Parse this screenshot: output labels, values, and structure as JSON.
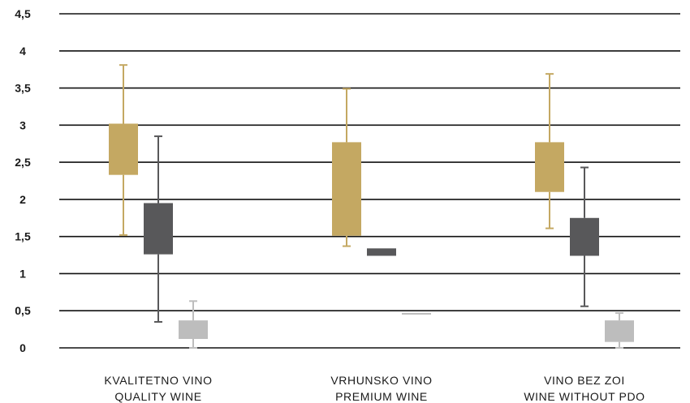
{
  "chart_data": {
    "type": "boxplot",
    "title": "",
    "xlabel": "",
    "ylabel": "",
    "ylim": [
      0,
      4.5
    ],
    "grid": true,
    "legend": "none",
    "y_ticks": [
      "0",
      "0,5",
      "1",
      "1,5",
      "2",
      "2,5",
      "3",
      "3,5",
      "4",
      "4,5"
    ],
    "categories": [
      {
        "line1": "KVALITETNO VINO",
        "line2": "QUALITY WINE"
      },
      {
        "line1": "VRHUNSKO VINO",
        "line2": "PREMIUM WINE"
      },
      {
        "line1": "VINO BEZ ZOI",
        "line2": "WINE WITHOUT PDO"
      }
    ],
    "series": [
      {
        "color": "#c4a862",
        "boxes": [
          {
            "whisker_low": 1.52,
            "q1": 2.33,
            "q3": 3.02,
            "whisker_high": 3.81
          },
          {
            "whisker_low": 1.37,
            "q1": 1.51,
            "q3": 2.77,
            "whisker_high": 3.49
          },
          {
            "whisker_low": 1.61,
            "q1": 2.1,
            "q3": 2.77,
            "whisker_high": 3.69
          }
        ]
      },
      {
        "color": "#58585a",
        "boxes": [
          {
            "whisker_low": 0.35,
            "q1": 1.26,
            "q3": 1.95,
            "whisker_high": 2.85
          },
          {
            "whisker_low": 1.24,
            "q1": 1.24,
            "q3": 1.34,
            "whisker_high": 1.34
          },
          {
            "whisker_low": 0.56,
            "q1": 1.24,
            "q3": 1.75,
            "whisker_high": 2.43
          }
        ]
      },
      {
        "color": "#bdbdbd",
        "boxes": [
          {
            "whisker_low": 0.0,
            "q1": 0.12,
            "q3": 0.37,
            "whisker_high": 0.63
          },
          {
            "whisker_low": 0.46,
            "q1": 0.46,
            "q3": 0.47,
            "whisker_high": 0.47
          },
          {
            "whisker_low": 0.0,
            "q1": 0.08,
            "q3": 0.37,
            "whisker_high": 0.47
          }
        ]
      }
    ]
  }
}
